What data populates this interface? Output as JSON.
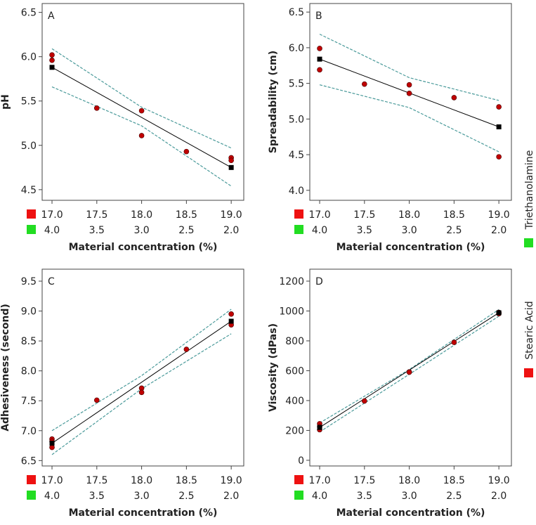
{
  "legend": [
    {
      "name": "Triethanolamine",
      "color": "#22dd22"
    },
    {
      "name": "Stearic Acid",
      "color": "#ee1111"
    }
  ],
  "chart_data": [
    {
      "type": "scatter",
      "panel_label": "A",
      "ylabel": "pH",
      "xlabel": "Material concentration (%)",
      "xlim": [
        16.89,
        19.14
      ],
      "xticks": [
        {
          "value": 17,
          "label": "17.0"
        },
        {
          "value": 17.5,
          "label": "17.5"
        },
        {
          "value": 18,
          "label": "18.0"
        },
        {
          "value": 18.5,
          "label": "18.5"
        },
        {
          "value": 19,
          "label": "19.0"
        }
      ],
      "x2lim": [
        4.11,
        1.86
      ],
      "x2ticks": [
        {
          "value": 4,
          "label": "4.0"
        },
        {
          "value": 3.5,
          "label": "3.5"
        },
        {
          "value": 3,
          "label": "3.0"
        },
        {
          "value": 2.5,
          "label": "2.5"
        },
        {
          "value": 2,
          "label": "2.0"
        }
      ],
      "ylim": [
        4.38,
        6.6
      ],
      "yticks": [
        4.5,
        {
          "value": 5,
          "label": "5.0"
        },
        5.5,
        {
          "value": 6,
          "label": "6.0"
        },
        6.5
      ],
      "points": {
        "color": "#c00000",
        "x": [
          17,
          17,
          17.5,
          18,
          18,
          18.5,
          19,
          19
        ],
        "y": [
          6.02,
          5.96,
          5.42,
          5.39,
          5.11,
          4.93,
          4.86,
          4.83
        ]
      },
      "predicted": {
        "color": "#000000",
        "x": [
          17,
          19
        ],
        "y": [
          5.88,
          4.75
        ]
      },
      "ci_upper": {
        "color": "#4a9a9a",
        "x": [
          17,
          18,
          19
        ],
        "y": [
          6.09,
          5.43,
          4.97
        ]
      },
      "ci_lower": {
        "color": "#4a9a9a",
        "x": [
          17,
          18,
          19
        ],
        "y": [
          5.66,
          5.22,
          4.54
        ]
      }
    },
    {
      "type": "scatter",
      "panel_label": "B",
      "ylabel": "Spreadability (cm)",
      "xlabel": "Material concentration (%)",
      "xlim": [
        16.89,
        19.14
      ],
      "xticks": [
        {
          "value": 17,
          "label": "17.0"
        },
        {
          "value": 17.5,
          "label": "17.5"
        },
        {
          "value": 18,
          "label": "18.0"
        },
        {
          "value": 18.5,
          "label": "18.5"
        },
        {
          "value": 19,
          "label": "19.0"
        }
      ],
      "x2lim": [
        4.11,
        1.86
      ],
      "x2ticks": [
        {
          "value": 4,
          "label": "4.0"
        },
        {
          "value": 3.5,
          "label": "3.5"
        },
        {
          "value": 3,
          "label": "3.0"
        },
        {
          "value": 2.5,
          "label": "2.5"
        },
        {
          "value": 2,
          "label": "2.0"
        }
      ],
      "ylim": [
        3.86,
        6.62
      ],
      "yticks": [
        {
          "value": 4,
          "label": "4.0"
        },
        4.5,
        {
          "value": 5,
          "label": "5.0"
        },
        5.5,
        {
          "value": 6,
          "label": "6.0"
        },
        6.5
      ],
      "points": {
        "color": "#c00000",
        "x": [
          17,
          17,
          17.5,
          18,
          18,
          18.5,
          19,
          19
        ],
        "y": [
          5.99,
          5.69,
          5.49,
          5.48,
          5.36,
          5.3,
          5.17,
          4.47
        ]
      },
      "predicted": {
        "color": "#000000",
        "x": [
          17,
          19
        ],
        "y": [
          5.84,
          4.89
        ]
      },
      "ci_upper": {
        "color": "#4a9a9a",
        "x": [
          17,
          18,
          19
        ],
        "y": [
          6.19,
          5.58,
          5.26
        ]
      },
      "ci_lower": {
        "color": "#4a9a9a",
        "x": [
          17,
          18,
          19
        ],
        "y": [
          5.48,
          5.16,
          4.54
        ]
      }
    },
    {
      "type": "scatter",
      "panel_label": "C",
      "ylabel": "Adhesiveness (second)",
      "xlabel": "Material concentration (%)",
      "xlim": [
        16.89,
        19.14
      ],
      "xticks": [
        {
          "value": 17,
          "label": "17.0"
        },
        {
          "value": 17.5,
          "label": "17.5"
        },
        {
          "value": 18,
          "label": "18.0"
        },
        {
          "value": 18.5,
          "label": "18.5"
        },
        {
          "value": 19,
          "label": "19.0"
        }
      ],
      "x2lim": [
        4.11,
        1.86
      ],
      "x2ticks": [
        {
          "value": 4,
          "label": "4.0"
        },
        {
          "value": 3.5,
          "label": "3.5"
        },
        {
          "value": 3,
          "label": "3.0"
        },
        {
          "value": 2.5,
          "label": "2.5"
        },
        {
          "value": 2,
          "label": "2.0"
        }
      ],
      "ylim": [
        6.41,
        9.7
      ],
      "yticks": [
        6.5,
        {
          "value": 7,
          "label": "7.0"
        },
        7.5,
        {
          "value": 8,
          "label": "8.0"
        },
        8.5,
        {
          "value": 9,
          "label": "9.0"
        },
        9.5
      ],
      "points": {
        "color": "#c00000",
        "x": [
          17,
          17,
          17,
          17.5,
          18,
          18,
          18.5,
          19,
          19
        ],
        "y": [
          6.86,
          6.82,
          6.72,
          7.51,
          7.71,
          7.64,
          8.36,
          8.95,
          8.77
        ]
      },
      "predicted": {
        "color": "#000000",
        "x": [
          17,
          19
        ],
        "y": [
          6.79,
          8.83
        ]
      },
      "ci_upper": {
        "color": "#4a9a9a",
        "x": [
          17,
          18,
          19
        ],
        "y": [
          7.0,
          7.92,
          9.03
        ]
      },
      "ci_lower": {
        "color": "#4a9a9a",
        "x": [
          17,
          18,
          19
        ],
        "y": [
          6.6,
          7.7,
          8.62
        ]
      }
    },
    {
      "type": "scatter",
      "panel_label": "D",
      "ylabel": "Viscosity (dPas)",
      "xlabel": "Material concentration (%)",
      "xlim": [
        16.89,
        19.14
      ],
      "xticks": [
        {
          "value": 17,
          "label": "17.0"
        },
        {
          "value": 17.5,
          "label": "17.5"
        },
        {
          "value": 18,
          "label": "18.0"
        },
        {
          "value": 18.5,
          "label": "18.5"
        },
        {
          "value": 19,
          "label": "19.0"
        }
      ],
      "x2lim": [
        4.11,
        1.86
      ],
      "x2ticks": [
        {
          "value": 4,
          "label": "4.0"
        },
        {
          "value": 3.5,
          "label": "3.5"
        },
        {
          "value": 3,
          "label": "3.0"
        },
        {
          "value": 2.5,
          "label": "2.5"
        },
        {
          "value": 2,
          "label": "2.0"
        }
      ],
      "ylim": [
        -38,
        1280
      ],
      "yticks": [
        0,
        200,
        400,
        600,
        800,
        1000,
        1200
      ],
      "points": {
        "color": "#c00000",
        "x": [
          17,
          17,
          17,
          17.5,
          18,
          18,
          18.5,
          19,
          19
        ],
        "y": [
          245,
          225,
          205,
          397,
          592,
          590,
          790,
          990,
          982
        ]
      },
      "predicted": {
        "color": "#000000",
        "x": [
          17,
          19
        ],
        "y": [
          220,
          988
        ]
      },
      "ci_upper": {
        "color": "#4a9a9a",
        "x": [
          17,
          18,
          19
        ],
        "y": [
          250,
          608,
          1010
        ]
      },
      "ci_lower": {
        "color": "#4a9a9a",
        "x": [
          17,
          18,
          19
        ],
        "y": [
          190,
          576,
          965
        ]
      }
    }
  ]
}
